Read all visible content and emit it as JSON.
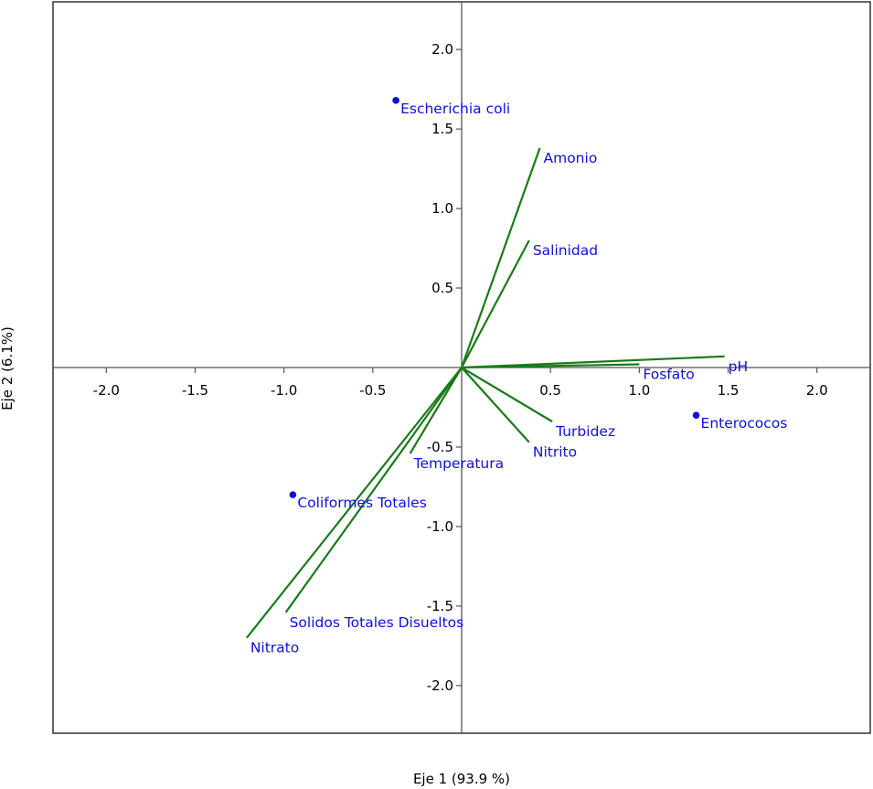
{
  "chart_data": {
    "type": "scatter",
    "subtype": "biplot",
    "xlabel": "Eje 1 (93.9 %)",
    "ylabel": "Eje 2 (6.1%)",
    "xlim": [
      -2.3,
      2.3
    ],
    "ylim": [
      -2.3,
      2.3
    ],
    "x_ticks": [
      -2.0,
      -1.5,
      -1.0,
      -0.5,
      0.5,
      1.0,
      1.5,
      2.0
    ],
    "y_ticks": [
      2.0,
      1.5,
      1.0,
      0.5,
      -0.5,
      -1.0,
      -1.5,
      -2.0
    ],
    "x_tick_labels": [
      "-2.0",
      "-1.5",
      "-1.0",
      "-0.5",
      "0.5",
      "1.0",
      "1.5",
      "2.0"
    ],
    "y_tick_labels": [
      "2.0",
      "1.5",
      "1.0",
      "0.5",
      "-0.5",
      "-1.0",
      "-1.5",
      "-2.0"
    ],
    "grid": false,
    "legend": "none",
    "colors": {
      "points": "#1010d8",
      "vectors": "#1a7a1a",
      "axes": "#555555",
      "frame": "#333333"
    },
    "points": [
      {
        "label": "Escherichia coli",
        "x": -0.37,
        "y": 1.68
      },
      {
        "label": "Enterococos",
        "x": 1.32,
        "y": -0.3
      },
      {
        "label": "Coliformes Totales",
        "x": -0.95,
        "y": -0.8
      }
    ],
    "vectors": [
      {
        "label": "Amonio",
        "x": 0.44,
        "y": 1.38
      },
      {
        "label": "Salinidad",
        "x": 0.38,
        "y": 0.8
      },
      {
        "label": "pH",
        "x": 1.48,
        "y": 0.07
      },
      {
        "label": "Fosfato",
        "x": 1.0,
        "y": 0.02
      },
      {
        "label": "Turbidez",
        "x": 0.51,
        "y": -0.34
      },
      {
        "label": "Nitrito",
        "x": 0.38,
        "y": -0.47
      },
      {
        "label": "Temperatura",
        "x": -0.29,
        "y": -0.54
      },
      {
        "label": "Solidos Totales Disueltos",
        "x": -0.99,
        "y": -1.54
      },
      {
        "label": "Nitrato",
        "x": -1.21,
        "y": -1.7
      }
    ]
  }
}
